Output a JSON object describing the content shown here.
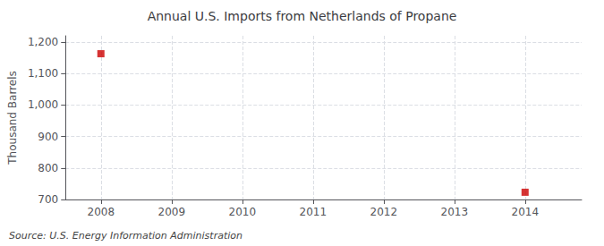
{
  "chart_data": {
    "type": "scatter",
    "title": "Annual U.S. Imports from Netherlands of Propane",
    "ylabel": "Thousand Barrels",
    "annotation": "Source: U.S. Energy Information Administration",
    "x": [
      2008,
      2014
    ],
    "values": [
      1163,
      723
    ],
    "color": "#cc0000",
    "marker": "square",
    "xlim": [
      2007.5,
      2014.8
    ],
    "xticks": [
      2008,
      2009,
      2010,
      2011,
      2012,
      2013,
      2014
    ],
    "ylim": [
      700,
      1220
    ],
    "yticks": [
      700,
      800,
      900,
      {
        "value": 1000,
        "label": "1,000"
      },
      {
        "value": 1100,
        "label": "1,100"
      },
      {
        "value": 1200,
        "label": "1,200"
      }
    ],
    "grid": true
  }
}
